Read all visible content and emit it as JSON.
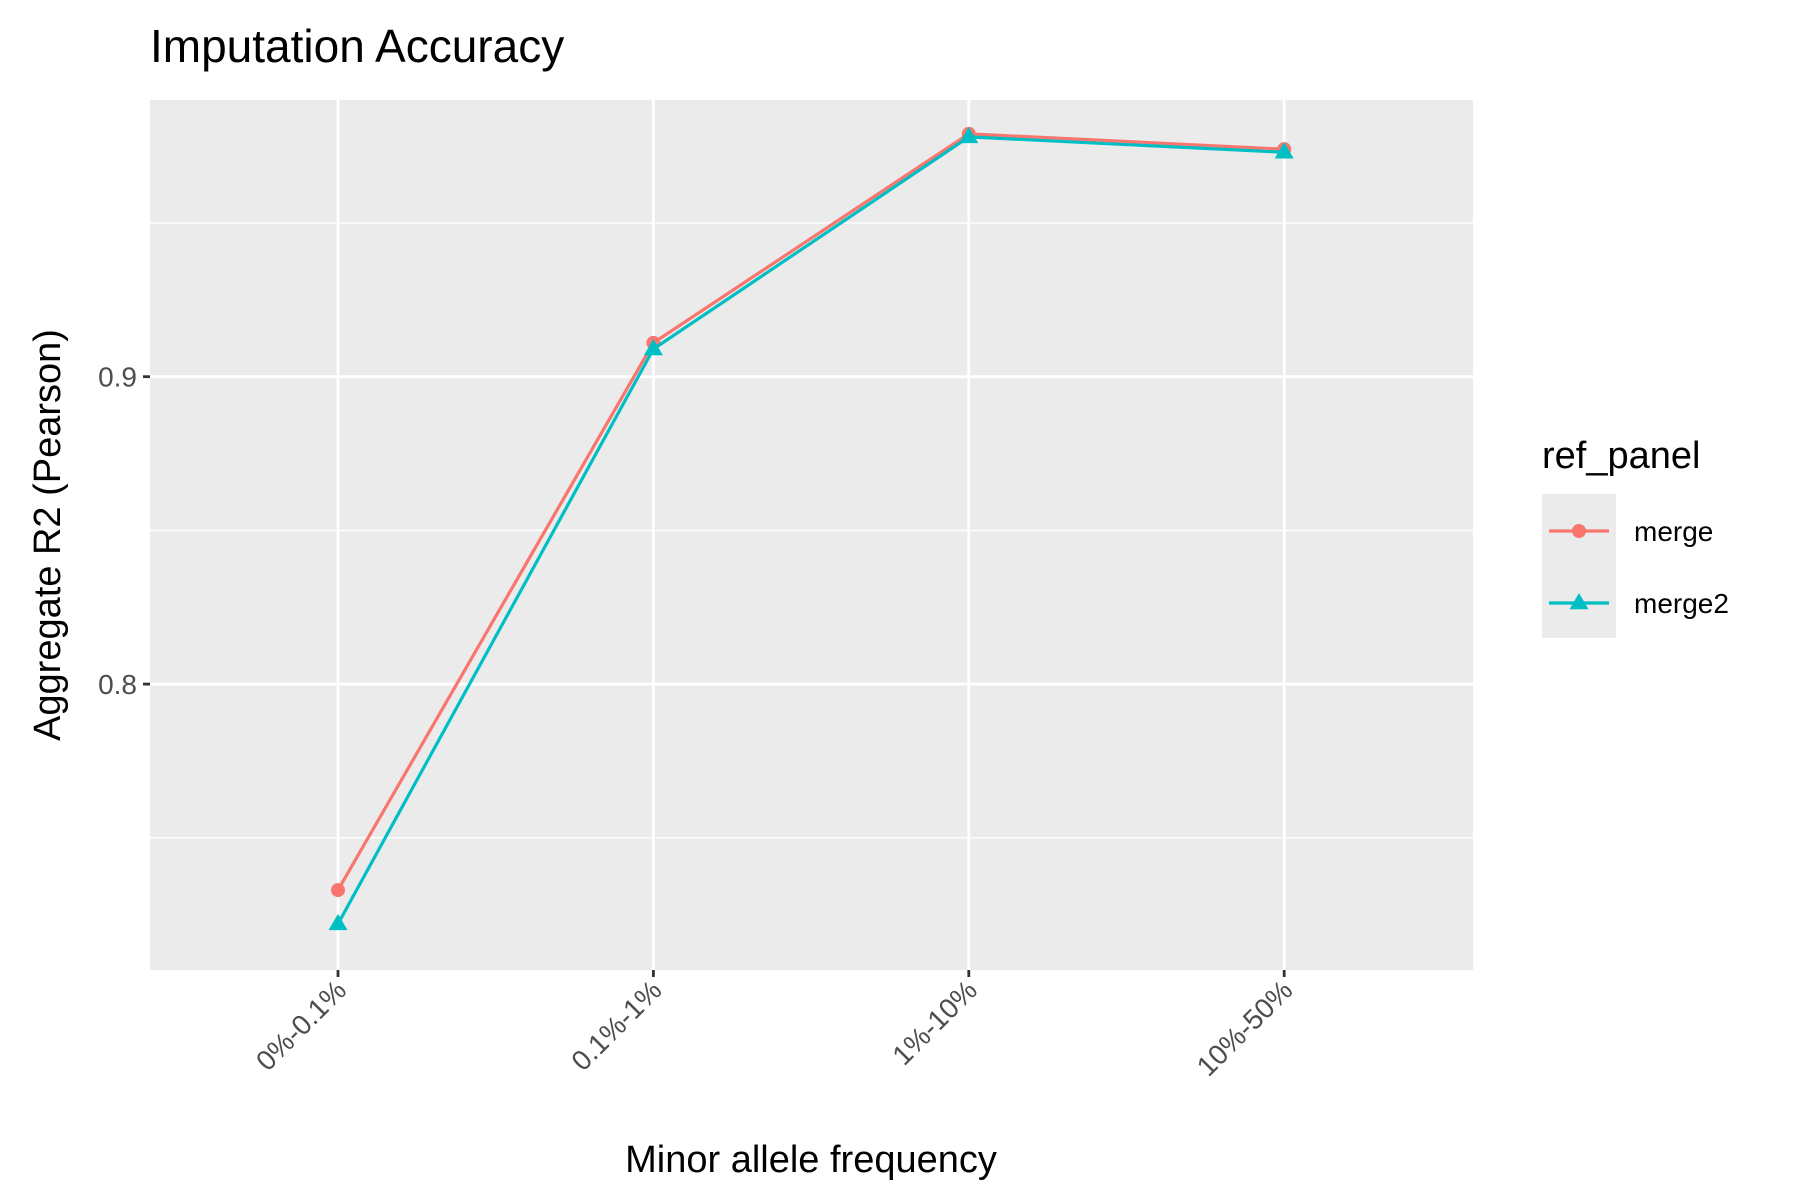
{
  "chart_data": {
    "type": "line",
    "title": "Imputation Accuracy",
    "xlabel": "Minor allele frequency",
    "ylabel": "Aggregate R2 (Pearson)",
    "categories": [
      "0%-0.1%",
      "0.1%-1%",
      "1%-10%",
      "10%-50%"
    ],
    "ylim": [
      0.707,
      0.99
    ],
    "y_major_ticks": [
      0.8,
      0.9
    ],
    "y_tick_labels": [
      "0.8",
      "0.9"
    ],
    "y_minor_ticks": [
      0.75,
      0.85,
      0.95
    ],
    "grid": true,
    "legend": {
      "title": "ref_panel",
      "position": "right"
    },
    "series": [
      {
        "name": "merge",
        "color": "#F8766D",
        "marker": "circle",
        "values": [
          0.733,
          0.911,
          0.979,
          0.974
        ]
      },
      {
        "name": "merge2",
        "color": "#00BFC4",
        "marker": "triangle",
        "values": [
          0.722,
          0.909,
          0.978,
          0.973
        ]
      }
    ]
  }
}
